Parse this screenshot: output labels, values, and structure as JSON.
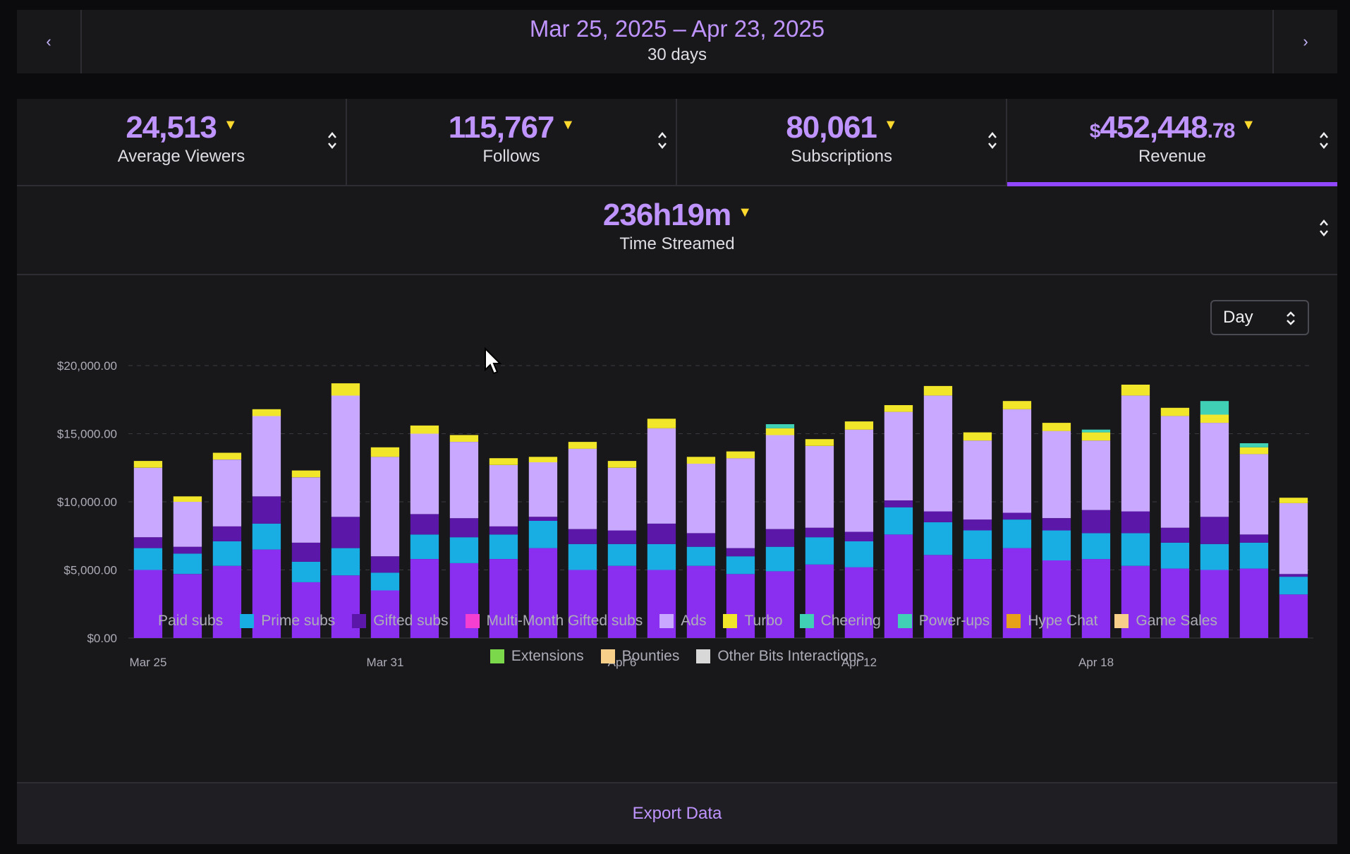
{
  "date_range": {
    "label": "Mar 25, 2025 – Apr 23, 2025",
    "days": "30 days",
    "prev_icon": "‹",
    "next_icon": "›"
  },
  "stats": [
    {
      "value": "24,513",
      "label": "Average Viewers"
    },
    {
      "value": "115,767",
      "label": "Follows"
    },
    {
      "value": "80,061",
      "label": "Subscriptions"
    },
    {
      "currency": "$",
      "value_main": "452,448",
      "value_cents": ".78",
      "label": "Revenue"
    }
  ],
  "time_streamed": {
    "value": "236h19m",
    "label": "Time Streamed"
  },
  "interval": {
    "value": "Day"
  },
  "export_label": "Export Data",
  "colors": {
    "accent": "#bf94ff",
    "caret": "#ffd92e",
    "paid": "#8a2ff0",
    "prime": "#19aee3",
    "gifted": "#5b17a8",
    "ads": "#c9a8ff",
    "turbo": "#f1e62a",
    "cheering": "#3fd0b6",
    "powerups": "#3fd0b6"
  },
  "legend": [
    {
      "label": "Paid subs",
      "color": "#8a2ff0"
    },
    {
      "label": "Prime subs",
      "color": "#19aee3"
    },
    {
      "label": "Gifted subs",
      "color": "#5b17a8"
    },
    {
      "label": "Multi-Month Gifted subs",
      "color": "#f43fd0"
    },
    {
      "label": "Ads",
      "color": "#c9a8ff"
    },
    {
      "label": "Turbo",
      "color": "#f1e62a"
    },
    {
      "label": "Cheering",
      "color": "#3fd0b6"
    },
    {
      "label": "Power-ups",
      "color": "#3fd0b6"
    },
    {
      "label": "Hype Chat",
      "color": "#e8a21a"
    },
    {
      "label": "Game Sales",
      "color": "#f8cf88"
    },
    {
      "label": "Extensions",
      "color": "#7bd84a"
    },
    {
      "label": "Bounties",
      "color": "#f8cf88"
    },
    {
      "label": "Other Bits Interactions",
      "color": "#d8d8d8"
    }
  ],
  "chart_data": {
    "type": "bar",
    "stacked": true,
    "title": "",
    "xlabel": "",
    "ylabel": "",
    "ylim": [
      0,
      20000
    ],
    "y_ticks": [
      0,
      5000,
      10000,
      15000,
      20000
    ],
    "y_tick_labels": [
      "$0.00",
      "$5,000.00",
      "$10,000.00",
      "$15,000.00",
      "$20,000.00"
    ],
    "x_tick_labels": [
      {
        "index": 0,
        "label": "Mar 25"
      },
      {
        "index": 6,
        "label": "Mar 31"
      },
      {
        "index": 12,
        "label": "Apr 6"
      },
      {
        "index": 18,
        "label": "Apr 12"
      },
      {
        "index": 24,
        "label": "Apr 18"
      }
    ],
    "categories": [
      "Mar 25",
      "Mar 26",
      "Mar 27",
      "Mar 28",
      "Mar 29",
      "Mar 30",
      "Mar 31",
      "Apr 1",
      "Apr 2",
      "Apr 3",
      "Apr 4",
      "Apr 5",
      "Apr 6",
      "Apr 7",
      "Apr 8",
      "Apr 9",
      "Apr 10",
      "Apr 11",
      "Apr 12",
      "Apr 13",
      "Apr 14",
      "Apr 15",
      "Apr 16",
      "Apr 17",
      "Apr 18",
      "Apr 19",
      "Apr 20",
      "Apr 21",
      "Apr 22",
      "Apr 23"
    ],
    "series": [
      {
        "name": "Paid subs",
        "color": "#8a2ff0",
        "values": [
          5000,
          4700,
          5300,
          6500,
          4100,
          4600,
          3500,
          5800,
          5500,
          5800,
          6600,
          5000,
          5300,
          5000,
          5300,
          4700,
          4900,
          5400,
          5200,
          7600,
          6100,
          5800,
          6600,
          5700,
          5800,
          5300,
          5100,
          5000,
          5100,
          3200
        ]
      },
      {
        "name": "Prime subs",
        "color": "#19aee3",
        "values": [
          1600,
          1500,
          1800,
          1900,
          1500,
          2000,
          1300,
          1800,
          1900,
          1800,
          2000,
          1900,
          1600,
          1900,
          1400,
          1300,
          1800,
          2000,
          1900,
          2000,
          2400,
          2100,
          2100,
          2200,
          1900,
          2400,
          1900,
          1900,
          1900,
          1300
        ]
      },
      {
        "name": "Gifted subs",
        "color": "#5b17a8",
        "values": [
          800,
          500,
          1100,
          2000,
          1400,
          2300,
          1200,
          1500,
          1400,
          600,
          300,
          1100,
          1000,
          1500,
          1000,
          600,
          1300,
          700,
          700,
          500,
          800,
          800,
          500,
          900,
          1700,
          1600,
          1100,
          2000,
          600,
          200
        ]
      },
      {
        "name": "Ads",
        "color": "#c9a8ff",
        "values": [
          5100,
          3300,
          4900,
          5900,
          4800,
          8900,
          7300,
          5900,
          5600,
          4500,
          4000,
          5900,
          4600,
          7000,
          5100,
          6600,
          6900,
          6000,
          7500,
          6500,
          8500,
          5800,
          7600,
          6400,
          5100,
          8500,
          8200,
          6900,
          5900,
          5200
        ]
      },
      {
        "name": "Turbo",
        "color": "#f1e62a",
        "values": [
          500,
          400,
          500,
          500,
          500,
          900,
          700,
          600,
          500,
          500,
          400,
          500,
          500,
          700,
          500,
          500,
          500,
          500,
          600,
          500,
          700,
          600,
          600,
          600,
          600,
          800,
          600,
          600,
          500,
          400
        ]
      },
      {
        "name": "Cheering",
        "color": "#3fd0b6",
        "values": [
          0,
          0,
          0,
          0,
          0,
          0,
          0,
          0,
          0,
          0,
          0,
          0,
          0,
          0,
          0,
          0,
          300,
          0,
          0,
          0,
          0,
          0,
          0,
          0,
          200,
          0,
          0,
          1000,
          300,
          0
        ]
      }
    ]
  }
}
